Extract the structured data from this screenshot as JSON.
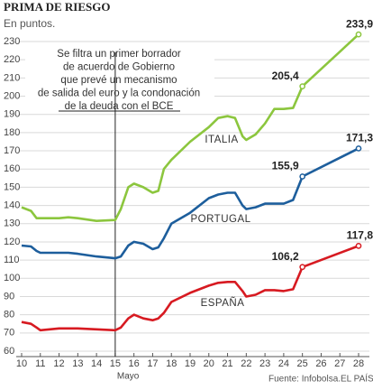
{
  "chart_data": {
    "type": "line",
    "title": "PRIMA DE RIESGO",
    "subtitle": "En puntos.",
    "x": [
      10,
      10.5,
      10.8,
      11,
      12,
      12.5,
      13,
      14,
      15,
      15.3,
      15.7,
      16,
      16.5,
      17,
      17.3,
      17.6,
      18,
      19,
      20,
      20.5,
      21,
      21.4,
      21.8,
      22,
      22.5,
      23,
      23.5,
      24,
      24.5,
      25,
      28
    ],
    "series": [
      {
        "name": "ITALIA",
        "color": "#8cc63e",
        "values": [
          139,
          137,
          133,
          133,
          133,
          133.5,
          133,
          131.5,
          132,
          138,
          150,
          152,
          150,
          147,
          148,
          160,
          165,
          175,
          183,
          188,
          189,
          188,
          178,
          176,
          179,
          185,
          193,
          193,
          193.5,
          205.4,
          233.9
        ],
        "value_labels": [
          null,
          null,
          null,
          null,
          null,
          null,
          null,
          null,
          null,
          null,
          null,
          null,
          null,
          null,
          null,
          null,
          null,
          null,
          null,
          null,
          null,
          null,
          null,
          null,
          null,
          null,
          null,
          null,
          null,
          "205,4",
          "233,9"
        ]
      },
      {
        "name": "PORTUGAL",
        "color": "#1d5e9c",
        "values": [
          118,
          117.5,
          115,
          114,
          114,
          114,
          113.5,
          112,
          111,
          112,
          118,
          120,
          119,
          116,
          117,
          122,
          130,
          136,
          144,
          146,
          147,
          147,
          140,
          138,
          139,
          141,
          141,
          141,
          143,
          155.9,
          171.3
        ],
        "value_labels": [
          null,
          null,
          null,
          null,
          null,
          null,
          null,
          null,
          null,
          null,
          null,
          null,
          null,
          null,
          null,
          null,
          null,
          null,
          null,
          null,
          null,
          null,
          null,
          null,
          null,
          null,
          null,
          null,
          null,
          "155,9",
          "171,3"
        ]
      },
      {
        "name": "ESPAÑA",
        "color": "#d71a21",
        "values": [
          76,
          75,
          73,
          71.5,
          72.5,
          72.5,
          72.5,
          72,
          71.5,
          73,
          78,
          80,
          78,
          77,
          78,
          81,
          87,
          92,
          96,
          97.5,
          98,
          98,
          93,
          90,
          91,
          93.5,
          93.5,
          93,
          94,
          106.2,
          117.8
        ],
        "value_labels": [
          null,
          null,
          null,
          null,
          null,
          null,
          null,
          null,
          null,
          null,
          null,
          null,
          null,
          null,
          null,
          null,
          null,
          null,
          null,
          null,
          null,
          null,
          null,
          null,
          null,
          null,
          null,
          null,
          null,
          "106,2",
          "117,8"
        ]
      }
    ],
    "xlim": [
      10,
      28
    ],
    "xticks": [
      10,
      11,
      12,
      13,
      14,
      15,
      16,
      17,
      18,
      19,
      20,
      21,
      22,
      23,
      24,
      25,
      26,
      27,
      28
    ],
    "x_label": "Mayo",
    "ylim": [
      60,
      230
    ],
    "yticks": [
      60,
      70,
      80,
      90,
      100,
      110,
      120,
      130,
      140,
      150,
      160,
      170,
      180,
      190,
      200,
      210,
      220,
      230
    ],
    "grid": true,
    "annotation": {
      "x": 15,
      "lines": [
        "Se filtra un primer borrador",
        "de acuerdo de Gobierno",
        "que prevé un mecanismo",
        "de salida del euro y la condonación",
        "de la deuda con el BCE"
      ]
    },
    "source": "Fuente: Infobolsa.",
    "publisher": "EL PAÍS"
  }
}
